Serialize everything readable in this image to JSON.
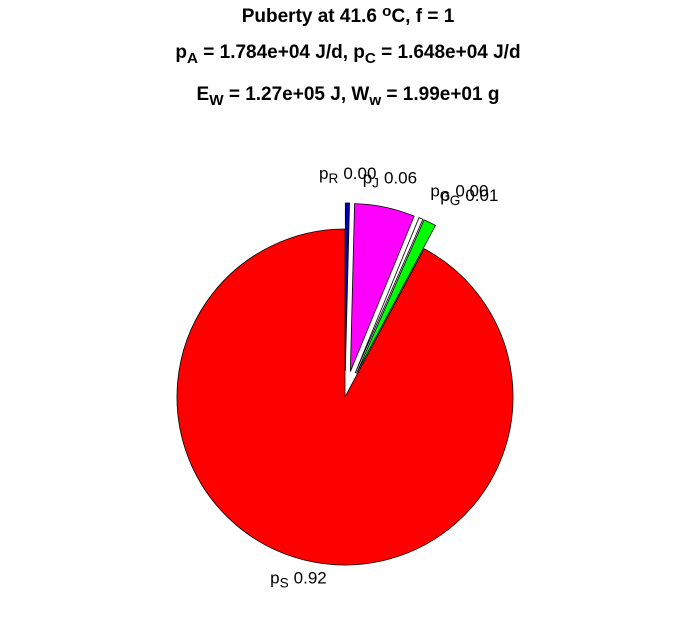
{
  "chart_data": {
    "type": "pie",
    "title_lines": [
      [
        {
          "text": "Puberty at 41.6 "
        },
        {
          "sup": "o"
        },
        {
          "text": "C, f = 1"
        }
      ],
      [
        {
          "text": "p"
        },
        {
          "sub": "A"
        },
        {
          "text": " = 1.784e+04 J/d,  p"
        },
        {
          "sub": "C"
        },
        {
          "text": " = 1.648e+04 J/d"
        }
      ],
      [
        {
          "text": "E"
        },
        {
          "sub": "W"
        },
        {
          "text": " = 1.27e+05 J, W"
        },
        {
          "sub": "w"
        },
        {
          "text": " = 1.99e+01 g"
        }
      ]
    ],
    "categories": [
      [
        {
          "text": "p"
        },
        {
          "sub": "R"
        }
      ],
      [
        {
          "text": "p"
        },
        {
          "sub": "J"
        }
      ],
      [
        {
          "text": "p"
        },
        {
          "sub": "G"
        }
      ],
      [
        {
          "text": "p"
        },
        {
          "sub": "G"
        }
      ],
      [
        {
          "text": "p"
        },
        {
          "sub": "S"
        }
      ]
    ],
    "values": [
      0.004,
      0.058,
      0.004,
      0.012,
      0.922
    ],
    "value_labels": [
      "0.00",
      "0.06",
      "0.00",
      "0.01",
      "0.92"
    ],
    "colors": [
      "#0000b0",
      "#ff00ff",
      "#ffffff",
      "#00ff00",
      "#ff0000"
    ],
    "explode": [
      true,
      true,
      true,
      true,
      false
    ]
  }
}
